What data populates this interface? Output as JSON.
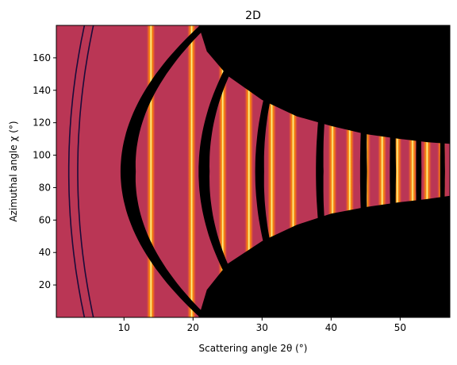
{
  "chart_data": {
    "type": "heatmap",
    "title": "2D",
    "xlabel": "Scattering angle 2θ (°)",
    "ylabel": "Azimuthal angle χ (°)",
    "xlim": [
      0.2,
      57.2
    ],
    "ylim": [
      0,
      180
    ],
    "xticks": [
      10,
      20,
      30,
      40,
      50
    ],
    "yticks": [
      20,
      40,
      60,
      80,
      100,
      120,
      140,
      160
    ],
    "grid": false,
    "legend": "none",
    "colormap": "inferno",
    "background_color": "#ba3655",
    "masked_color": "#000000",
    "ring_positions": [
      13.9,
      19.8,
      24.3,
      28.1,
      31.4,
      34.5,
      40.2,
      42.7,
      45.1,
      47.4,
      49.6,
      51.8,
      53.9,
      56.0
    ],
    "gaps": [
      {
        "x_mid": 9.5,
        "x_edge": 21.0,
        "width": 2.2
      },
      {
        "x_mid": 20.8,
        "x_edge": 28.5,
        "width": 1.6
      },
      {
        "x_mid": 29.0,
        "x_edge": 34.0,
        "width": 1.3
      },
      {
        "x_mid": 37.8,
        "x_edge": 40.5,
        "width": 1.1
      },
      {
        "x_mid": 44.2,
        "x_edge": 45.5,
        "width": 1.0
      },
      {
        "x_mid": 48.5,
        "x_edge": 49.3,
        "width": 0.9
      },
      {
        "x_mid": 52.3,
        "x_edge": 52.8,
        "width": 0.8
      },
      {
        "x_mid": 55.8,
        "x_edge": 56.1,
        "width": 0.7
      }
    ],
    "mask_boundary": {
      "top": [
        [
          20.8,
          180
        ],
        [
          22,
          164
        ],
        [
          25,
          149
        ],
        [
          30,
          134
        ],
        [
          35,
          124
        ],
        [
          40,
          118
        ],
        [
          45,
          113
        ],
        [
          50,
          110
        ],
        [
          54,
          108
        ],
        [
          57.2,
          107
        ]
      ],
      "bottom": [
        [
          20.8,
          0
        ],
        [
          22,
          17
        ],
        [
          25,
          33
        ],
        [
          30,
          47
        ],
        [
          35,
          57
        ],
        [
          40,
          64
        ],
        [
          45,
          68
        ],
        [
          50,
          71
        ],
        [
          54,
          73
        ],
        [
          57.2,
          75
        ]
      ]
    }
  }
}
